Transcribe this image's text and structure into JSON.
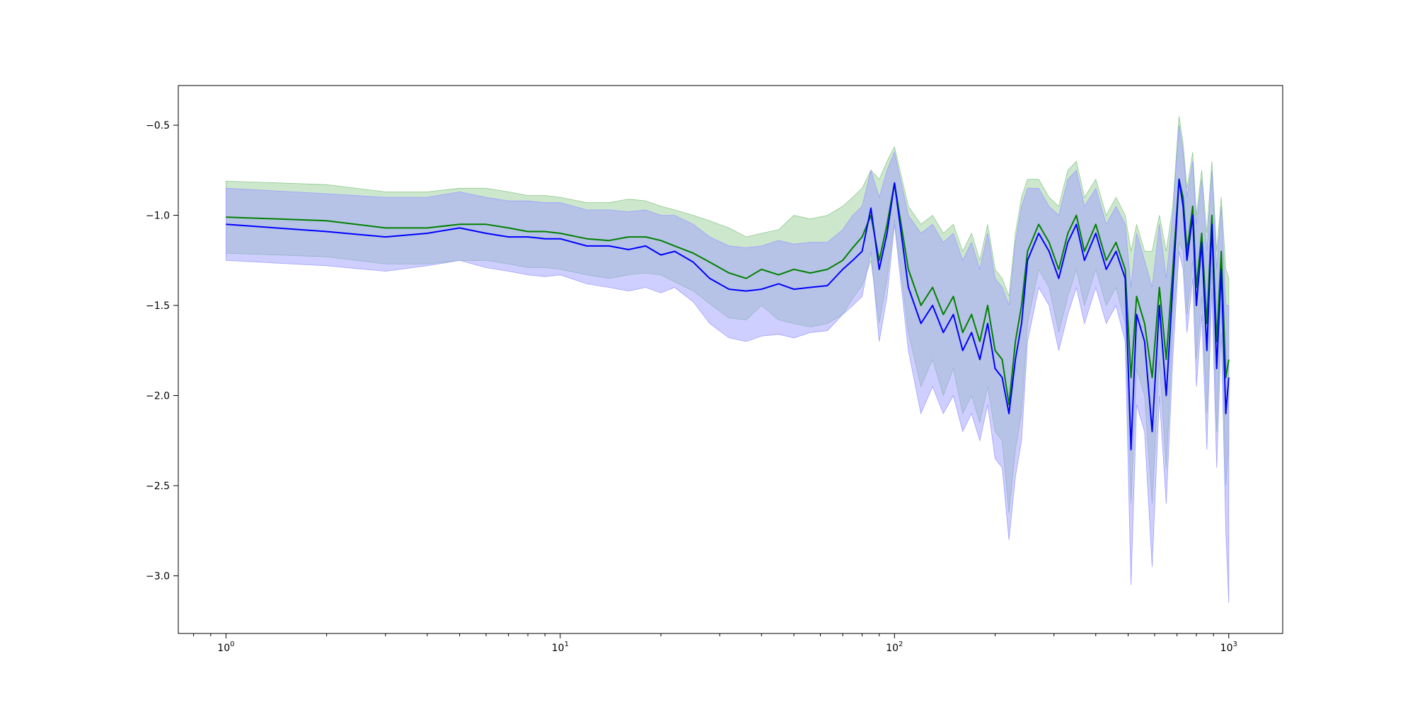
{
  "chart_data": {
    "type": "line",
    "title": "",
    "xlabel": "",
    "ylabel": "",
    "x_scale": "log",
    "xlim": [
      0.72,
      1450
    ],
    "ylim": [
      -3.32,
      -0.28
    ],
    "grid": false,
    "legend": "none",
    "x_ticks": [
      {
        "value": 1,
        "base": "10",
        "exp": "0"
      },
      {
        "value": 10,
        "base": "10",
        "exp": "1"
      },
      {
        "value": 100,
        "base": "10",
        "exp": "2"
      },
      {
        "value": 1000,
        "base": "10",
        "exp": "3"
      }
    ],
    "y_ticks": [
      -0.5,
      -1.0,
      -1.5,
      -2.0,
      -2.5,
      -3.0
    ],
    "y_tick_labels": [
      "−0.5",
      "−1.0",
      "−1.5",
      "−2.0",
      "−2.5",
      "−3.0"
    ],
    "colors": {
      "green_line": "#008000",
      "green_band": "#90c990",
      "blue_line": "#0000ff",
      "blue_band": "#9f9fff",
      "overlap_band": "#9db3d4"
    },
    "series": [
      {
        "color": "green",
        "x": [
          1,
          2,
          3,
          4,
          5,
          6,
          7,
          8,
          9,
          10,
          12,
          14,
          16,
          18,
          20,
          22,
          25,
          28,
          32,
          36,
          40,
          45,
          50,
          56,
          63,
          70,
          75,
          80,
          85,
          90,
          95,
          100,
          110,
          120,
          130,
          140,
          150,
          160,
          170,
          180,
          190,
          200,
          210,
          220,
          230,
          240,
          250,
          270,
          290,
          310,
          330,
          350,
          370,
          400,
          430,
          460,
          490,
          510,
          530,
          560,
          590,
          620,
          650,
          680,
          710,
          730,
          750,
          780,
          800,
          830,
          860,
          890,
          920,
          950,
          980,
          1000
        ],
        "values": [
          -1.01,
          -1.03,
          -1.07,
          -1.07,
          -1.05,
          -1.05,
          -1.07,
          -1.09,
          -1.09,
          -1.1,
          -1.13,
          -1.14,
          -1.12,
          -1.12,
          -1.14,
          -1.17,
          -1.21,
          -1.26,
          -1.32,
          -1.35,
          -1.3,
          -1.33,
          -1.3,
          -1.32,
          -1.3,
          -1.25,
          -1.18,
          -1.12,
          -1.0,
          -1.25,
          -1.05,
          -0.82,
          -1.3,
          -1.5,
          -1.4,
          -1.55,
          -1.45,
          -1.65,
          -1.55,
          -1.7,
          -1.5,
          -1.75,
          -1.8,
          -2.05,
          -1.7,
          -1.5,
          -1.2,
          -1.05,
          -1.15,
          -1.3,
          -1.1,
          -1.0,
          -1.2,
          -1.05,
          -1.25,
          -1.15,
          -1.3,
          -1.9,
          -1.45,
          -1.6,
          -1.9,
          -1.4,
          -1.8,
          -1.3,
          -0.8,
          -0.9,
          -1.2,
          -0.95,
          -1.4,
          -1.1,
          -1.6,
          -1.0,
          -1.7,
          -1.2,
          -1.9,
          -1.8
        ],
        "band_upper": [
          -0.81,
          -0.83,
          -0.87,
          -0.87,
          -0.85,
          -0.85,
          -0.87,
          -0.89,
          -0.89,
          -0.9,
          -0.93,
          -0.93,
          -0.91,
          -0.92,
          -0.95,
          -0.97,
          -1.0,
          -1.03,
          -1.07,
          -1.12,
          -1.1,
          -1.08,
          -1.0,
          -1.02,
          -1.0,
          -0.95,
          -0.9,
          -0.85,
          -0.75,
          -0.8,
          -0.7,
          -0.62,
          -0.95,
          -1.05,
          -1.0,
          -1.1,
          -1.05,
          -1.2,
          -1.1,
          -1.25,
          -1.05,
          -1.3,
          -1.35,
          -1.45,
          -1.1,
          -0.9,
          -0.8,
          -0.8,
          -0.9,
          -0.95,
          -0.75,
          -0.7,
          -0.9,
          -0.8,
          -1.0,
          -0.9,
          -1.0,
          -1.2,
          -1.05,
          -1.2,
          -1.2,
          -1.0,
          -1.2,
          -0.95,
          -0.45,
          -0.6,
          -0.85,
          -0.65,
          -1.0,
          -0.75,
          -1.1,
          -0.7,
          -1.2,
          -0.9,
          -1.3,
          -1.35
        ],
        "band_lower": [
          -1.21,
          -1.23,
          -1.27,
          -1.27,
          -1.25,
          -1.25,
          -1.27,
          -1.29,
          -1.29,
          -1.3,
          -1.33,
          -1.35,
          -1.33,
          -1.32,
          -1.33,
          -1.37,
          -1.42,
          -1.49,
          -1.57,
          -1.58,
          -1.5,
          -1.58,
          -1.6,
          -1.62,
          -1.6,
          -1.55,
          -1.46,
          -1.39,
          -1.25,
          -1.6,
          -1.35,
          -1.02,
          -1.65,
          -1.95,
          -1.8,
          -2.0,
          -1.85,
          -2.1,
          -2.0,
          -2.15,
          -1.95,
          -2.2,
          -2.25,
          -2.65,
          -2.3,
          -2.1,
          -1.6,
          -1.3,
          -1.4,
          -1.65,
          -1.45,
          -1.3,
          -1.5,
          -1.3,
          -1.5,
          -1.4,
          -1.6,
          -2.6,
          -1.85,
          -2.0,
          -2.6,
          -1.8,
          -2.4,
          -1.65,
          -1.15,
          -1.2,
          -1.55,
          -1.25,
          -1.8,
          -1.45,
          -2.1,
          -1.3,
          -2.2,
          -1.5,
          -2.5,
          -2.25
        ]
      },
      {
        "color": "blue",
        "x": [
          1,
          2,
          3,
          4,
          5,
          6,
          7,
          8,
          9,
          10,
          12,
          14,
          16,
          18,
          20,
          22,
          25,
          28,
          32,
          36,
          40,
          45,
          50,
          56,
          63,
          70,
          75,
          80,
          85,
          90,
          95,
          100,
          110,
          120,
          130,
          140,
          150,
          160,
          170,
          180,
          190,
          200,
          210,
          220,
          230,
          240,
          250,
          270,
          290,
          310,
          330,
          350,
          370,
          400,
          430,
          460,
          490,
          510,
          530,
          560,
          590,
          620,
          650,
          680,
          710,
          730,
          750,
          780,
          800,
          830,
          860,
          890,
          920,
          950,
          980,
          1000
        ],
        "values": [
          -1.05,
          -1.09,
          -1.12,
          -1.1,
          -1.07,
          -1.1,
          -1.12,
          -1.12,
          -1.13,
          -1.13,
          -1.17,
          -1.17,
          -1.19,
          -1.17,
          -1.22,
          -1.2,
          -1.26,
          -1.35,
          -1.41,
          -1.42,
          -1.41,
          -1.38,
          -1.41,
          -1.4,
          -1.39,
          -1.3,
          -1.25,
          -1.2,
          -0.96,
          -1.3,
          -1.1,
          -0.82,
          -1.4,
          -1.6,
          -1.5,
          -1.65,
          -1.55,
          -1.75,
          -1.65,
          -1.8,
          -1.6,
          -1.85,
          -1.9,
          -2.1,
          -1.8,
          -1.6,
          -1.25,
          -1.1,
          -1.2,
          -1.35,
          -1.15,
          -1.05,
          -1.25,
          -1.1,
          -1.3,
          -1.2,
          -1.35,
          -2.3,
          -1.55,
          -1.7,
          -2.2,
          -1.5,
          -2.0,
          -1.4,
          -0.8,
          -0.95,
          -1.25,
          -1.0,
          -1.5,
          -1.15,
          -1.75,
          -1.05,
          -1.85,
          -1.3,
          -2.1,
          -1.9
        ],
        "band_upper": [
          -0.85,
          -0.88,
          -0.9,
          -0.9,
          -0.87,
          -0.9,
          -0.92,
          -0.92,
          -0.93,
          -0.93,
          -0.97,
          -0.97,
          -0.98,
          -0.97,
          -1.0,
          -1.0,
          -1.05,
          -1.12,
          -1.17,
          -1.18,
          -1.17,
          -1.14,
          -1.16,
          -1.15,
          -1.15,
          -1.08,
          -1.0,
          -0.95,
          -0.75,
          -0.9,
          -0.75,
          -0.65,
          -1.0,
          -1.1,
          -1.05,
          -1.15,
          -1.1,
          -1.25,
          -1.15,
          -1.3,
          -1.1,
          -1.35,
          -1.4,
          -1.5,
          -1.15,
          -0.95,
          -0.85,
          -0.85,
          -0.95,
          -1.0,
          -0.8,
          -0.75,
          -0.95,
          -0.85,
          -1.05,
          -0.95,
          -1.05,
          -1.4,
          -1.1,
          -1.25,
          -1.4,
          -1.05,
          -1.35,
          -1.0,
          -0.5,
          -0.65,
          -0.9,
          -0.7,
          -1.05,
          -0.8,
          -1.2,
          -0.75,
          -1.3,
          -0.95,
          -1.5,
          -1.5
        ],
        "band_lower": [
          -1.25,
          -1.28,
          -1.31,
          -1.28,
          -1.25,
          -1.29,
          -1.31,
          -1.33,
          -1.34,
          -1.33,
          -1.38,
          -1.4,
          -1.42,
          -1.4,
          -1.43,
          -1.4,
          -1.48,
          -1.6,
          -1.68,
          -1.7,
          -1.67,
          -1.66,
          -1.68,
          -1.65,
          -1.64,
          -1.55,
          -1.5,
          -1.45,
          -1.2,
          -1.7,
          -1.45,
          -1.05,
          -1.75,
          -2.1,
          -1.95,
          -2.1,
          -2.0,
          -2.2,
          -2.1,
          -2.25,
          -2.05,
          -2.35,
          -2.4,
          -2.8,
          -2.45,
          -2.25,
          -1.7,
          -1.4,
          -1.5,
          -1.75,
          -1.55,
          -1.4,
          -1.6,
          -1.4,
          -1.6,
          -1.5,
          -1.7,
          -3.05,
          -2.05,
          -2.2,
          -2.95,
          -2.0,
          -2.6,
          -1.8,
          -1.2,
          -1.3,
          -1.65,
          -1.35,
          -1.95,
          -1.55,
          -2.3,
          -1.4,
          -2.4,
          -1.65,
          -2.75,
          -3.15
        ]
      }
    ]
  }
}
